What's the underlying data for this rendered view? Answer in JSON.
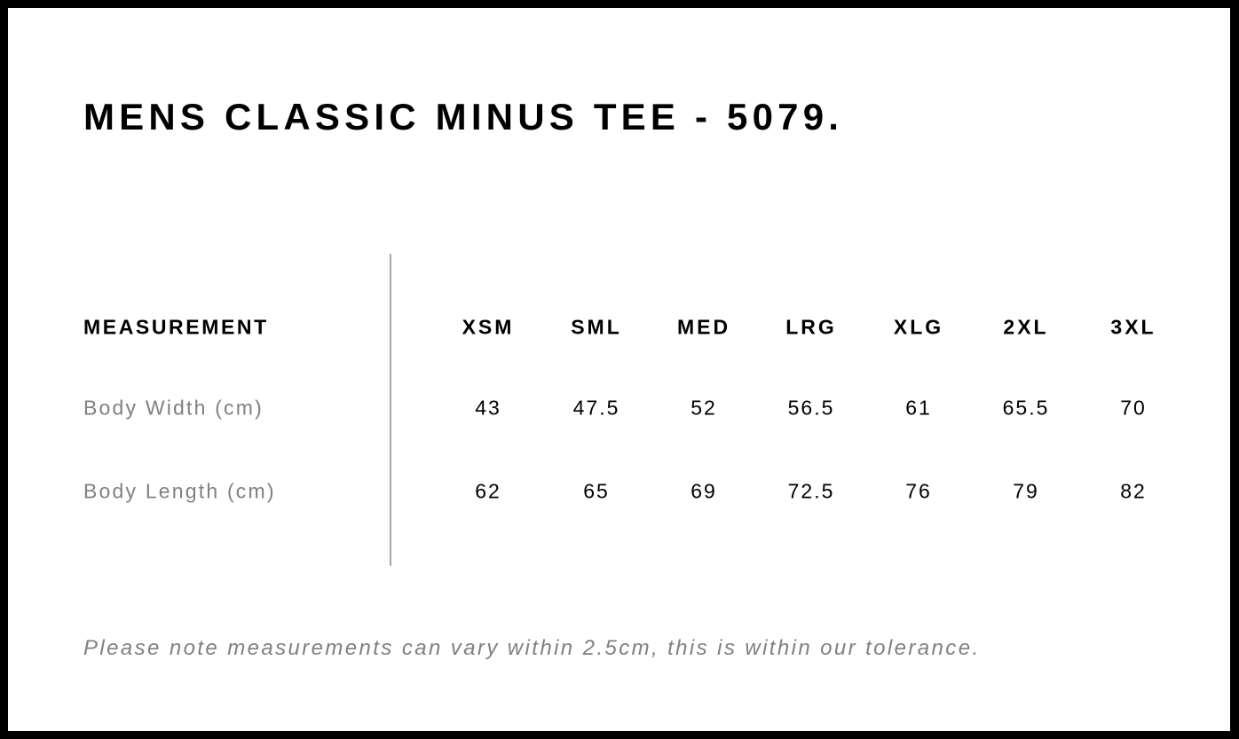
{
  "title": "MENS CLASSIC MINUS TEE - 5079.",
  "table": {
    "header_label": "MEASUREMENT",
    "sizes": [
      "XSM",
      "SML",
      "MED",
      "LRG",
      "XLG",
      "2XL",
      "3XL"
    ],
    "rows": [
      {
        "label": "Body Width (cm)",
        "values": [
          "43",
          "47.5",
          "52",
          "56.5",
          "61",
          "65.5",
          "70"
        ]
      },
      {
        "label": "Body Length (cm)",
        "values": [
          "62",
          "65",
          "69",
          "72.5",
          "76",
          "79",
          "82"
        ]
      }
    ]
  },
  "note": "Please note measurements can vary within 2.5cm, this is within our tolerance."
}
